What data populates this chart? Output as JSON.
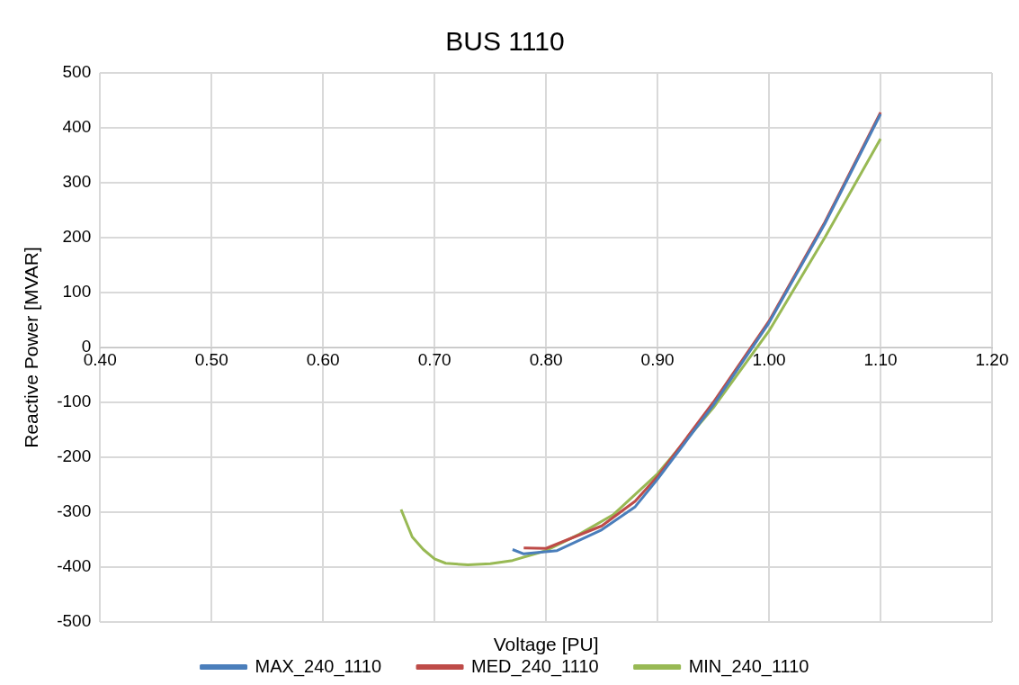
{
  "chart_data": {
    "type": "line",
    "title": "BUS 1110",
    "xlabel": "Voltage [PU]",
    "ylabel": "Reactive Power [MVAR]",
    "xlim": [
      0.4,
      1.2
    ],
    "xticks": [
      {
        "value": 0.4,
        "label": "0.40"
      },
      {
        "value": 0.5,
        "label": "0.50"
      },
      {
        "value": 0.6,
        "label": "0.60"
      },
      {
        "value": 0.7,
        "label": "0.70"
      },
      {
        "value": 0.8,
        "label": "0.80"
      },
      {
        "value": 0.9,
        "label": "0.90"
      },
      {
        "value": 1.0,
        "label": "1.00"
      },
      {
        "value": 1.1,
        "label": "1.10"
      },
      {
        "value": 1.2,
        "label": "1.20"
      }
    ],
    "ylim": [
      -500,
      500
    ],
    "yticks": [
      -500,
      -400,
      -300,
      -200,
      -100,
      0,
      100,
      200,
      300,
      400,
      500
    ],
    "grid": true,
    "legend": "bottom",
    "marker": "none",
    "line_style": "solid",
    "series": [
      {
        "name": "MAX_240_1110",
        "color": "#4a7ebb",
        "x": [
          0.77,
          0.78,
          0.81,
          0.85,
          0.88,
          0.9,
          0.95,
          1.0,
          1.05,
          1.1
        ],
        "values": [
          -368,
          -376,
          -370,
          -332,
          -290,
          -240,
          -105,
          45,
          225,
          425
        ]
      },
      {
        "name": "MED_240_1110",
        "color": "#be4b48",
        "x": [
          0.78,
          0.8,
          0.85,
          0.88,
          0.9,
          0.95,
          1.0,
          1.05,
          1.1
        ],
        "values": [
          -365,
          -366,
          -325,
          -280,
          -235,
          -100,
          48,
          228,
          428
        ]
      },
      {
        "name": "MIN_240_1110",
        "color": "#98b954",
        "x": [
          0.67,
          0.68,
          0.69,
          0.7,
          0.71,
          0.73,
          0.75,
          0.77,
          0.8,
          0.83,
          0.86,
          0.9,
          0.95,
          1.0,
          1.05,
          1.1
        ],
        "values": [
          -295,
          -345,
          -368,
          -385,
          -393,
          -396,
          -394,
          -388,
          -370,
          -340,
          -305,
          -230,
          -110,
          30,
          200,
          380
        ]
      }
    ]
  }
}
